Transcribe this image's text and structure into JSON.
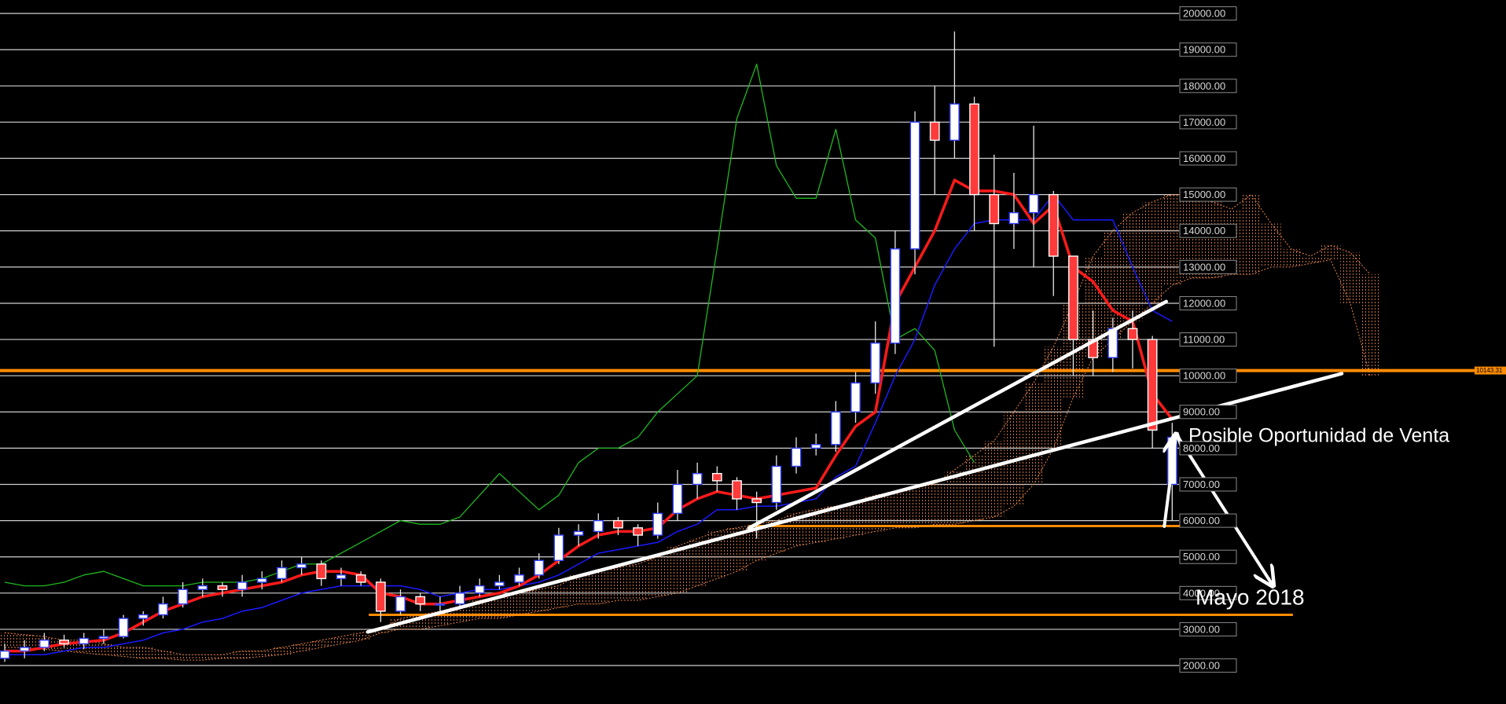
{
  "chart_data": {
    "type": "candlestick",
    "xlim": [
      -0.24,
      75.87
    ],
    "ylim": [
      938,
      20371
    ],
    "grid": true,
    "yticks": [
      {
        "value": 20000,
        "label": "20000.00"
      },
      {
        "value": 19000,
        "label": "19000.00"
      },
      {
        "value": 18000,
        "label": "18000.00"
      },
      {
        "value": 17000,
        "label": "17000.00"
      },
      {
        "value": 16000,
        "label": "16000.00"
      },
      {
        "value": 15000,
        "label": "15000.00"
      },
      {
        "value": 14000,
        "label": "14000.00"
      },
      {
        "value": 13000,
        "label": "13000.00"
      },
      {
        "value": 12000,
        "label": "12000.00"
      },
      {
        "value": 11000,
        "label": "11000.00"
      },
      {
        "value": 10000,
        "label": "10000.00"
      },
      {
        "value": 9000,
        "label": "9000.00"
      },
      {
        "value": 8000,
        "label": "8000.00"
      },
      {
        "value": 7000,
        "label": "7000.00"
      },
      {
        "value": 6000,
        "label": "6000.00"
      },
      {
        "value": 5000,
        "label": "5000.00"
      },
      {
        "value": 4000,
        "label": "4000.00"
      },
      {
        "value": 3000,
        "label": "3000.00"
      },
      {
        "value": 2000,
        "label": "2000.00"
      }
    ],
    "candles": {
      "up_color": "#ffffff",
      "up_edge": "#3340ff",
      "down_color": "#ff3a3a",
      "down_edge": "#ffffff",
      "open": [
        2200,
        2400,
        2500,
        2700,
        2600,
        2750,
        2800,
        3300,
        3400,
        3700,
        4100,
        4200,
        4100,
        4300,
        4400,
        4700,
        4800,
        4400,
        4500,
        4300,
        3500,
        3900,
        3700,
        3700,
        4000,
        4200,
        4300,
        4500,
        4900,
        5600,
        5700,
        6000,
        5800,
        5600,
        6200,
        7000,
        7300,
        7100,
        6600,
        6500,
        7500,
        8000,
        8100,
        9000,
        9800,
        10900,
        13500,
        17000,
        16500,
        17500,
        15000,
        14200,
        14500,
        15000,
        13300,
        11000,
        10500,
        11300,
        11000,
        7000
      ],
      "high": [
        2600,
        2700,
        2900,
        2850,
        2900,
        3000,
        3400,
        3500,
        3900,
        4300,
        4400,
        4300,
        4500,
        4600,
        4900,
        5000,
        4900,
        4700,
        4600,
        4400,
        4100,
        4000,
        3900,
        4200,
        4400,
        4500,
        4700,
        5100,
        5800,
        5900,
        6200,
        6100,
        5900,
        6500,
        7400,
        7600,
        7500,
        7200,
        6800,
        7800,
        8300,
        8400,
        9300,
        10100,
        11500,
        14000,
        17300,
        18000,
        19500,
        17700,
        16100,
        15600,
        16900,
        15100,
        13300,
        11800,
        11600,
        11800,
        11100,
        8700
      ],
      "low": [
        2100,
        2200,
        2400,
        2500,
        2450,
        2600,
        2750,
        3100,
        3300,
        3600,
        3900,
        3900,
        3900,
        4100,
        4300,
        4500,
        4200,
        4200,
        4200,
        3200,
        3400,
        3500,
        3500,
        3600,
        3900,
        4100,
        4200,
        4400,
        4800,
        5300,
        5500,
        5600,
        5300,
        5500,
        6000,
        6600,
        6800,
        6300,
        5500,
        6300,
        7300,
        7800,
        7900,
        8700,
        9500,
        10600,
        12800,
        15000,
        16000,
        14000,
        10800,
        13500,
        13000,
        12200,
        10000,
        10000,
        10100,
        10200,
        8000,
        6000
      ],
      "close": [
        2400,
        2500,
        2700,
        2600,
        2750,
        2800,
        3300,
        3400,
        3700,
        4100,
        4200,
        4100,
        4300,
        4400,
        4700,
        4800,
        4400,
        4500,
        4300,
        3500,
        3900,
        3700,
        3700,
        4000,
        4200,
        4300,
        4500,
        4900,
        5600,
        5700,
        6000,
        5800,
        5600,
        6200,
        7000,
        7300,
        7100,
        6600,
        6500,
        7500,
        8000,
        8100,
        9000,
        9800,
        10900,
        13500,
        17000,
        16500,
        17500,
        15000,
        14200,
        14500,
        15000,
        13300,
        11000,
        10500,
        11300,
        11000,
        8500,
        8300
      ]
    },
    "lines": [
      {
        "color": "#1fb81f",
        "width": 1.3,
        "values": [
          4300,
          4200,
          4200,
          4300,
          4500,
          4600,
          4400,
          4200,
          4200,
          4200,
          4300,
          4300,
          4300,
          4400,
          4600,
          4800,
          4800,
          5100,
          5400,
          5700,
          6000,
          5900,
          5900,
          6100,
          6700,
          7300,
          6800,
          6300,
          6700,
          7600,
          8000,
          8000,
          8300,
          9000,
          9500,
          10000,
          13500,
          17100,
          18600,
          15800,
          14900,
          14900,
          16800,
          14300,
          13800,
          11000,
          11300,
          10700,
          8500,
          7600
        ]
      },
      {
        "color": "#1a1aff",
        "width": 1.5,
        "values": [
          2300,
          2300,
          2300,
          2400,
          2500,
          2500,
          2600,
          2700,
          2900,
          3000,
          3200,
          3300,
          3500,
          3600,
          3800,
          4000,
          4100,
          4200,
          4200,
          4200,
          4200,
          4100,
          3900,
          4000,
          4100,
          4100,
          4200,
          4300,
          4500,
          4800,
          5100,
          5200,
          5300,
          5400,
          5700,
          5900,
          6300,
          6300,
          6400,
          6400,
          6500,
          6600,
          7200,
          7500,
          8700,
          10000,
          11000,
          12500,
          13500,
          14200,
          14300,
          14300,
          14300,
          15000,
          14300,
          14300,
          14300,
          13000,
          11800,
          11500
        ]
      },
      {
        "color": "#ff1a1a",
        "width": 3.5,
        "values": [
          2400,
          2400,
          2500,
          2600,
          2650,
          2700,
          2900,
          3200,
          3500,
          3700,
          3900,
          4000,
          4100,
          4200,
          4300,
          4500,
          4600,
          4600,
          4500,
          4000,
          3900,
          3700,
          3700,
          3800,
          3900,
          4000,
          4200,
          4500,
          4900,
          5300,
          5600,
          5700,
          5700,
          5800,
          6300,
          6600,
          6800,
          6700,
          6600,
          6700,
          6800,
          6900,
          7800,
          8600,
          9000,
          12000,
          13000,
          14000,
          15400,
          15100,
          15100,
          15000,
          14200,
          14700,
          13000,
          12600,
          11800,
          11500,
          9500,
          8800
        ]
      }
    ],
    "cloud": {
      "color": "#e8844a",
      "span_a": [
        2900,
        2850,
        2800,
        2700,
        2700,
        2600,
        2500,
        2500,
        2400,
        2300,
        2300,
        2300,
        2400,
        2400,
        2500,
        2600,
        2700,
        2800,
        2900,
        3000,
        3300,
        3400,
        3500,
        3600,
        3800,
        3900,
        4000,
        4100,
        4200,
        4500,
        4600,
        4700,
        4800,
        5000,
        5300,
        5500,
        5700,
        5800,
        5900,
        6000,
        6200,
        6300,
        6400,
        6500,
        6700,
        6800,
        6900,
        7000,
        7400,
        7800,
        8200,
        9000,
        9800,
        10800,
        12000,
        13300,
        14000,
        14500,
        14800,
        15000,
        15000,
        14800,
        14600,
        15000,
        14200,
        13500,
        13300,
        13600,
        13400,
        12800
      ],
      "span_b": [
        2500,
        2500,
        2450,
        2400,
        2350,
        2300,
        2250,
        2200,
        2200,
        2150,
        2150,
        2200,
        2200,
        2250,
        2300,
        2400,
        2500,
        2600,
        2700,
        2900,
        3000,
        3000,
        3100,
        3200,
        3300,
        3300,
        3400,
        3500,
        3600,
        3700,
        3700,
        3800,
        3800,
        3900,
        4000,
        4200,
        4400,
        4600,
        4900,
        5100,
        5300,
        5400,
        5500,
        5600,
        5700,
        5800,
        5800,
        5900,
        5900,
        6000,
        6100,
        6400,
        7000,
        8000,
        9400,
        10500,
        11000,
        11500,
        12000,
        12500,
        12700,
        12700,
        12800,
        12800,
        13000,
        13000,
        13100,
        13200,
        12000,
        10000
      ]
    },
    "levels": [
      {
        "value": 10143.31,
        "color": "#ff8c00",
        "width": 4
      },
      {
        "value": 5850,
        "color": "#ff8c00",
        "width": 3,
        "x": [
          37.6,
          59.4
        ]
      },
      {
        "value": 3400,
        "color": "#ff8c00",
        "width": 3,
        "x": [
          18.4,
          65.1
        ]
      }
    ],
    "trendlines": [
      {
        "color": "#ffffff",
        "points": [
          [
            18.35,
            2927
          ],
          [
            67.57,
            10058
          ]
        ]
      },
      {
        "color": "#ffffff",
        "points": [
          [
            37.6,
            5790
          ],
          [
            58.7,
            12047
          ]
        ]
      }
    ],
    "arrows": [
      {
        "color": "#ffffff",
        "points": [
          [
            58.6,
            5843
          ],
          [
            59.2,
            8388
          ]
        ]
      },
      {
        "color": "#ffffff",
        "points": [
          [
            59.2,
            8388
          ],
          [
            64.1,
            4199
          ]
        ]
      }
    ],
    "annotations": [
      "Posible Oportunidad de Venta",
      "Mayo 2018"
    ]
  }
}
